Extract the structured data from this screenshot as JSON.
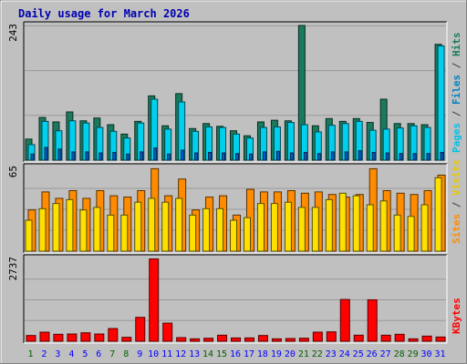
{
  "chart_data": {
    "type": "bar",
    "title": "Daily usage for March 2026",
    "categories": [
      "1",
      "2",
      "3",
      "4",
      "5",
      "6",
      "7",
      "8",
      "9",
      "10",
      "11",
      "12",
      "13",
      "14",
      "15",
      "16",
      "17",
      "18",
      "19",
      "20",
      "21",
      "22",
      "23",
      "24",
      "25",
      "26",
      "27",
      "28",
      "29",
      "30",
      "31"
    ],
    "weekend_days": [
      "1",
      "7",
      "8",
      "14",
      "15",
      "21",
      "22",
      "28",
      "29"
    ],
    "panels": [
      {
        "name": "hits-files-pages",
        "ymax_label": "243",
        "ylim": [
          0,
          243
        ],
        "series": [
          {
            "name": "Hits",
            "color": "#1b7a5e",
            "values": [
              38,
              77,
              69,
              87,
              71,
              76,
              64,
              47,
              70,
              116,
              62,
              120,
              57,
              66,
              61,
              53,
              44,
              69,
              72,
              71,
              243,
              62,
              75,
              70,
              75,
              68,
              110,
              66,
              66,
              64,
              209
            ]
          },
          {
            "name": "Files",
            "color": "#00d0ee",
            "values": [
              28,
              70,
              53,
              71,
              67,
              59,
              52,
              40,
              67,
              110,
              56,
              105,
              52,
              60,
              59,
              47,
              40,
              59,
              60,
              68,
              64,
              51,
              63,
              66,
              70,
              54,
              56,
              58,
              62,
              59,
              206
            ]
          },
          {
            "name": "Pages",
            "color": "#0060d0",
            "values": [
              11,
              23,
              20,
              15,
              15,
              13,
              14,
              11,
              15,
              22,
              11,
              18,
              13,
              14,
              13,
              12,
              11,
              15,
              16,
              13,
              14,
              12,
              15,
              15,
              17,
              14,
              13,
              12,
              12,
              12,
              14
            ]
          }
        ],
        "axis_text": [
          "Pages",
          " / ",
          "Files",
          " / ",
          "Hits"
        ],
        "axis_colors": [
          "#00c0e8",
          "#404040",
          "#0080c0",
          "#404040",
          "#1b7a5e"
        ]
      },
      {
        "name": "visits-sites",
        "ymax_label": "65",
        "ylim": [
          0,
          65
        ],
        "series": [
          {
            "name": "Visits",
            "color": "#ff8c00",
            "values": [
              32,
              46,
              41,
              47,
              41,
              47,
              43,
              42,
              47,
              64,
              43,
              56,
              32,
              42,
              43,
              28,
              48,
              46,
              46,
              47,
              45,
              46,
              44,
              42,
              44,
              64,
              47,
              45,
              44,
              47,
              59
            ]
          },
          {
            "name": "Sites",
            "color": "#ffe000",
            "values": [
              24,
              33,
              37,
              40,
              32,
              34,
              28,
              28,
              38,
              41,
              38,
              41,
              28,
              33,
              33,
              24,
              26,
              37,
              37,
              38,
              34,
              34,
              40,
              45,
              43,
              36,
              39,
              28,
              27,
              36,
              57
            ]
          }
        ],
        "axis_text": [
          "Sites",
          " / ",
          "Visits"
        ],
        "axis_colors": [
          "#ff8c00",
          "#404040",
          "#e8c800"
        ]
      },
      {
        "name": "kbytes",
        "ymax_label": "2737",
        "ylim": [
          0,
          2737
        ],
        "series": [
          {
            "name": "KBytes",
            "color": "#ff0000",
            "values": [
              190,
              300,
              230,
              240,
              280,
              240,
              420,
              130,
              790,
              2720,
              600,
              120,
              80,
              100,
              200,
              110,
              110,
              190,
              80,
              90,
              100,
              300,
              310,
              1380,
              200,
              1370,
              200,
              230,
              80,
              170,
              140
            ]
          }
        ],
        "axis_text": [
          "KBytes"
        ],
        "axis_colors": [
          "#ff0000"
        ]
      }
    ]
  },
  "colors": {
    "weekday_label": "#0000ff",
    "weekend_label": "#006000",
    "title": "#0000b0",
    "background": "#c0c0c0",
    "frame_dark": "#808080",
    "frame_light": "#ffffff"
  }
}
